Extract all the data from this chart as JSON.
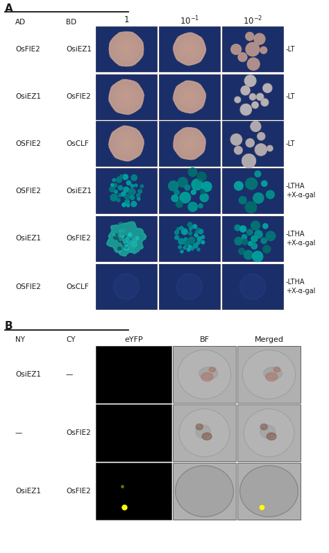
{
  "title_a": "A",
  "title_b": "B",
  "col_headers_a": [
    "1",
    "$10^{-1}$",
    "$10^{-2}$"
  ],
  "row_a_labels_ad": [
    "OsFIE2",
    "OsiEZ1",
    "OSFIE2",
    "OSFIE2",
    "OsiEZ1",
    "OSFIE2"
  ],
  "row_a_labels_bd": [
    "OsiEZ1",
    "OsFIE2",
    "OsCLF",
    "OsiEZ1",
    "OsFIE2",
    "OsCLF"
  ],
  "row_a_right": [
    "-LT",
    "-LT",
    "-LT",
    "-LTHA\n+X-α-gal",
    "-LTHA\n+X-α-gal",
    "-LTHA\n+X-α-gal"
  ],
  "row_b_labels_ny": [
    "OsiEZ1",
    "—",
    "OsiEZ1"
  ],
  "row_b_labels_cy": [
    "—",
    "OsFIE2",
    "OsFIE2"
  ],
  "col_headers_b": [
    "eYFP",
    "BF",
    "Merged"
  ],
  "bg_dark": "#1a2f6a",
  "bg_white": "#ffffff",
  "text_color": "#1a1a1a"
}
